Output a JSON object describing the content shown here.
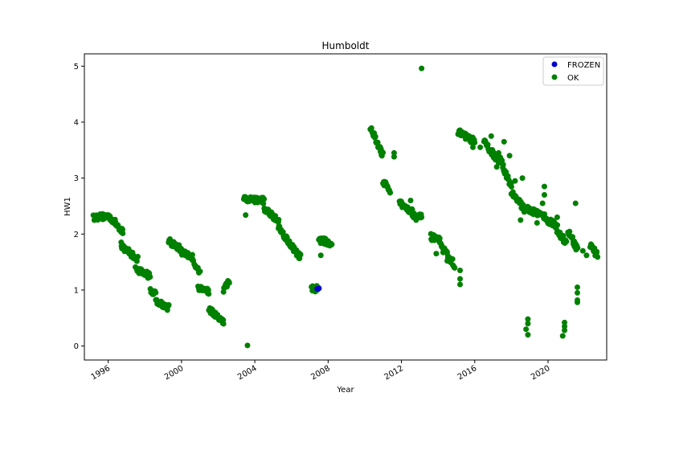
{
  "chart_data": {
    "type": "scatter",
    "title": "Humboldt",
    "xlabel": "Year",
    "ylabel": "HW1",
    "xlim": [
      1994.7,
      2023.2
    ],
    "ylim": [
      -0.25,
      5.22
    ],
    "x_ticks": [
      1996,
      2000,
      2004,
      2008,
      2012,
      2016,
      2020
    ],
    "x_tick_labels": [
      "1996",
      "2000",
      "2004",
      "2008",
      "2012",
      "2016",
      "2020"
    ],
    "y_ticks": [
      0,
      1,
      2,
      3,
      4,
      5
    ],
    "y_tick_labels": [
      "0",
      "1",
      "2",
      "3",
      "4",
      "5"
    ],
    "grid": false,
    "legend_position": "top-right",
    "series": [
      {
        "name": "FROZEN",
        "color": "#0000cc",
        "points": [
          [
            2007.4,
            1.02
          ],
          [
            2007.5,
            1.03
          ]
        ]
      },
      {
        "name": "OK",
        "color": "#008000",
        "segments": [
          {
            "x0": 1995.2,
            "x1": 1996.1,
            "y0": 2.3,
            "y1": 2.32
          },
          {
            "x0": 1996.1,
            "x1": 1996.8,
            "y0": 2.3,
            "y1": 2.05
          },
          {
            "x0": 1996.7,
            "x1": 1997.6,
            "y0": 1.8,
            "y1": 1.55
          },
          {
            "x0": 1997.5,
            "x1": 1998.3,
            "y0": 1.38,
            "y1": 1.25
          },
          {
            "x0": 1998.3,
            "x1": 1998.6,
            "y0": 1.0,
            "y1": 0.92
          },
          {
            "x0": 1998.6,
            "x1": 1999.3,
            "y0": 0.82,
            "y1": 0.68
          },
          {
            "x0": 1999.3,
            "x1": 2000.0,
            "y0": 1.87,
            "y1": 1.72
          },
          {
            "x0": 2000.0,
            "x1": 2000.6,
            "y0": 1.68,
            "y1": 1.58
          },
          {
            "x0": 2000.6,
            "x1": 2001.0,
            "y0": 1.55,
            "y1": 1.3
          },
          {
            "x0": 2000.9,
            "x1": 2001.5,
            "y0": 1.05,
            "y1": 0.98
          },
          {
            "x0": 2001.5,
            "x1": 2002.3,
            "y0": 0.65,
            "y1": 0.42
          },
          {
            "x0": 2002.3,
            "x1": 2002.6,
            "y0": 1.0,
            "y1": 1.15
          },
          {
            "x0": 2003.4,
            "x1": 2004.5,
            "y0": 2.62,
            "y1": 2.6
          },
          {
            "x0": 2004.5,
            "x1": 2005.3,
            "y0": 2.45,
            "y1": 2.25
          },
          {
            "x0": 2005.3,
            "x1": 2006.2,
            "y0": 2.12,
            "y1": 1.7
          },
          {
            "x0": 2006.2,
            "x1": 2006.5,
            "y0": 1.68,
            "y1": 1.6
          },
          {
            "x0": 2007.1,
            "x1": 2007.5,
            "y0": 1.02,
            "y1": 1.03
          },
          {
            "x0": 2007.5,
            "x1": 2008.2,
            "y0": 1.9,
            "y1": 1.83
          },
          {
            "x0": 2010.3,
            "x1": 2011.0,
            "y0": 3.9,
            "y1": 3.4
          },
          {
            "x0": 2011.0,
            "x1": 2011.4,
            "y0": 2.95,
            "y1": 2.75
          },
          {
            "x0": 2011.9,
            "x1": 2012.6,
            "y0": 2.55,
            "y1": 2.4
          },
          {
            "x0": 2012.6,
            "x1": 2013.1,
            "y0": 2.35,
            "y1": 2.3
          },
          {
            "x0": 2013.6,
            "x1": 2014.1,
            "y0": 1.95,
            "y1": 1.88
          },
          {
            "x0": 2014.1,
            "x1": 2014.9,
            "y0": 1.8,
            "y1": 1.45
          },
          {
            "x0": 2015.1,
            "x1": 2016.0,
            "y0": 3.82,
            "y1": 3.65
          },
          {
            "x0": 2016.5,
            "x1": 2017.3,
            "y0": 3.65,
            "y1": 3.3
          },
          {
            "x0": 2017.3,
            "x1": 2018.0,
            "y0": 3.4,
            "y1": 2.85
          },
          {
            "x0": 2018.0,
            "x1": 2018.7,
            "y0": 2.75,
            "y1": 2.45
          },
          {
            "x0": 2018.9,
            "x1": 2019.9,
            "y0": 2.45,
            "y1": 2.3
          },
          {
            "x0": 2019.9,
            "x1": 2020.5,
            "y0": 2.25,
            "y1": 2.15
          },
          {
            "x0": 2020.5,
            "x1": 2021.0,
            "y0": 2.05,
            "y1": 1.85
          },
          {
            "x0": 2021.1,
            "x1": 2021.6,
            "y0": 2.05,
            "y1": 1.72
          },
          {
            "x0": 2022.3,
            "x1": 2022.7,
            "y0": 1.8,
            "y1": 1.62
          }
        ],
        "points": [
          [
            2003.5,
            2.34
          ],
          [
            2003.6,
            0.01
          ],
          [
            2007.6,
            1.62
          ],
          [
            2011.6,
            3.45
          ],
          [
            2011.6,
            3.38
          ],
          [
            2012.5,
            2.6
          ],
          [
            2012.8,
            2.25
          ],
          [
            2013.1,
            4.96
          ],
          [
            2013.9,
            1.65
          ],
          [
            2014.5,
            1.52
          ],
          [
            2015.2,
            1.35
          ],
          [
            2015.2,
            1.2
          ],
          [
            2015.2,
            1.1
          ],
          [
            2016.3,
            3.55
          ],
          [
            2016.9,
            3.75
          ],
          [
            2017.6,
            3.65
          ],
          [
            2017.9,
            3.4
          ],
          [
            2018.2,
            2.95
          ],
          [
            2018.6,
            3.0
          ],
          [
            2018.5,
            2.25
          ],
          [
            2018.9,
            0.48
          ],
          [
            2018.9,
            0.4
          ],
          [
            2018.8,
            0.3
          ],
          [
            2018.9,
            0.2
          ],
          [
            2019.8,
            2.85
          ],
          [
            2019.8,
            2.7
          ],
          [
            2019.7,
            2.55
          ],
          [
            2020.5,
            2.3
          ],
          [
            2020.9,
            0.42
          ],
          [
            2020.9,
            0.35
          ],
          [
            2020.9,
            0.28
          ],
          [
            2020.8,
            0.18
          ],
          [
            2021.5,
            2.55
          ],
          [
            2021.6,
            1.05
          ],
          [
            2021.6,
            0.95
          ],
          [
            2021.6,
            0.82
          ],
          [
            2021.6,
            0.78
          ],
          [
            2021.9,
            1.7
          ],
          [
            2022.1,
            1.62
          ],
          [
            2019.4,
            2.2
          ],
          [
            2017.2,
            3.2
          ],
          [
            2015.9,
            3.55
          ]
        ]
      }
    ]
  }
}
